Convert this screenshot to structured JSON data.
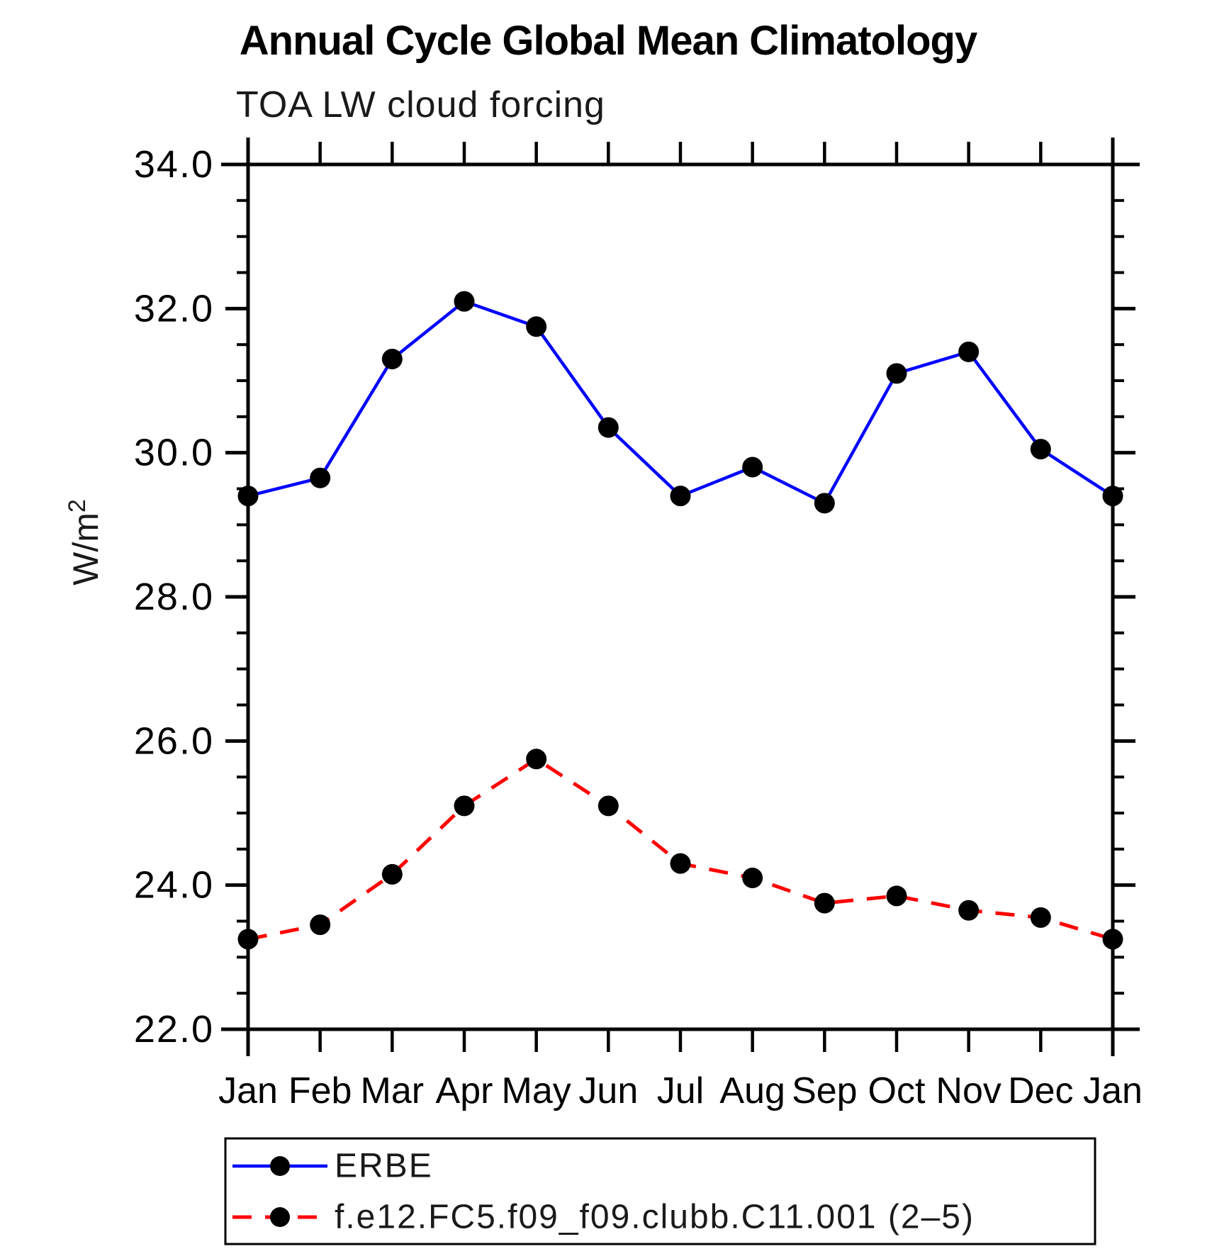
{
  "header": {
    "title": "Annual Cycle Global Mean Climatology",
    "subtitle": "TOA LW cloud forcing"
  },
  "chart_data": {
    "type": "line",
    "title": "Annual Cycle Global Mean Climatology",
    "subtitle": "TOA LW cloud forcing",
    "ylabel": "W/m²",
    "ylabel_parts": {
      "base": "W/m",
      "exp": "2"
    },
    "xlabel": "",
    "categories": [
      "Jan",
      "Feb",
      "Mar",
      "Apr",
      "May",
      "Jun",
      "Jul",
      "Aug",
      "Sep",
      "Oct",
      "Nov",
      "Dec",
      "Jan"
    ],
    "ylim": [
      22.0,
      34.0
    ],
    "ytick_major_interval": 2.0,
    "ytick_minor_interval": 0.5,
    "ytick_labels": [
      "22.0",
      "24.0",
      "26.0",
      "28.0",
      "30.0",
      "32.0",
      "34.0"
    ],
    "grid": false,
    "legend_position": "bottom-left-box",
    "frame_color": "#000000",
    "marker_color": "#000000",
    "series": [
      {
        "name": "ERBE",
        "color": "#0000ff",
        "line_style": "solid",
        "marker": "filled-circle",
        "values": [
          29.4,
          29.65,
          31.3,
          32.1,
          31.75,
          30.35,
          29.4,
          29.8,
          29.3,
          31.1,
          31.4,
          30.05,
          29.4
        ]
      },
      {
        "name": "f.e12.FC5.f09_f09.clubb.C11.001 (2–5)",
        "color": "#ff0000",
        "line_style": "dashed",
        "marker": "filled-circle",
        "values": [
          23.25,
          23.45,
          24.15,
          25.1,
          25.75,
          25.1,
          24.3,
          24.1,
          23.75,
          23.85,
          23.65,
          23.55,
          23.25
        ]
      }
    ]
  }
}
